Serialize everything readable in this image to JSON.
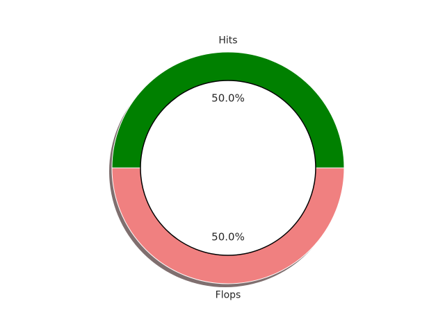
{
  "chart_data": {
    "type": "pie",
    "donut": true,
    "shadow": true,
    "start_angle_deg": 0,
    "slices": [
      {
        "label": "Hits",
        "value": 50.0,
        "pct_label": "50.0%",
        "color": "#008000"
      },
      {
        "label": "Flops",
        "value": 50.0,
        "pct_label": "50.0%",
        "color": "#f08080"
      }
    ],
    "hole_color": "#ffffff",
    "hole_edge_color": "#000000",
    "shadow_color": "#7f6f6f",
    "title": "",
    "legend": "none"
  }
}
